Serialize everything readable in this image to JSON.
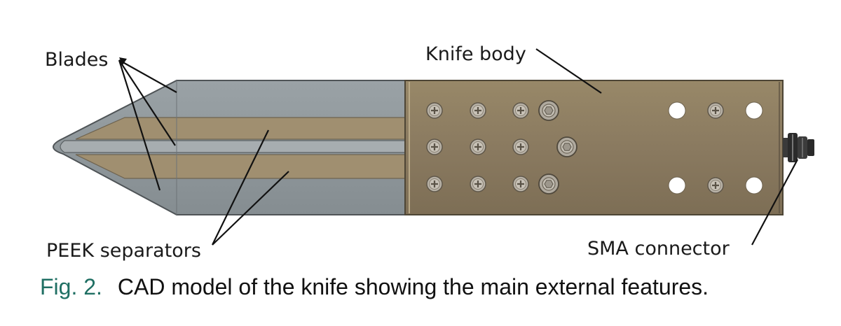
{
  "labels": {
    "blades": "Blades",
    "knife_body": "Knife body",
    "peek": "PEEK separators",
    "sma": "SMA connector"
  },
  "caption": {
    "number": "Fig. 2.",
    "text": "CAD model of the knife showing the main external features."
  },
  "colors": {
    "blade": "#8e969a",
    "blade_edge": "#5b6164",
    "peek": "#9c8b6c",
    "body": "#8a7a60",
    "body_edge": "#4d4535",
    "screw": "#b5b0a6",
    "hole": "#ffffff",
    "connector": "#2b2b2b",
    "caption_number": "#1f6f63"
  },
  "components": [
    {
      "name": "Knife body screws",
      "rows": 3,
      "columns": 3
    },
    {
      "name": "Hex screws",
      "count": 3
    },
    {
      "name": "Through holes",
      "count": 4
    },
    {
      "name": "Right end screws",
      "count": 2
    }
  ]
}
